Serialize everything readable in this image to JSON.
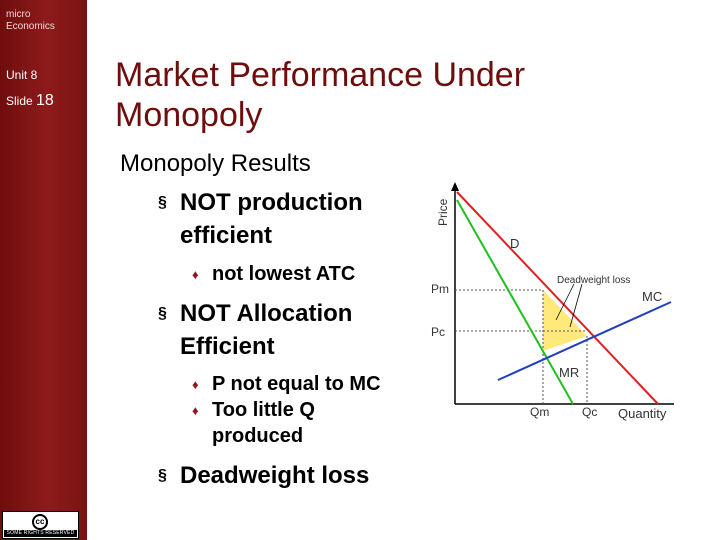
{
  "sidebar": {
    "course_line1": "micro",
    "course_line2": "Economics",
    "unit": "Unit 8",
    "slide_label": "Slide",
    "slide_number": "18"
  },
  "license": {
    "symbol": "cc",
    "text": "SOME RIGHTS RESERVED"
  },
  "title_line1": "Market Performance Under",
  "title_line2": "Monopoly",
  "content": {
    "heading": "Monopoly Results",
    "bullet1": {
      "line1": "NOT production",
      "line2": "efficient"
    },
    "sub1": "not lowest ATC",
    "bullet2": {
      "line1": "NOT  Allocation",
      "line2": "Efficient"
    },
    "sub2": "P not equal to MC",
    "sub3": {
      "line1": "Too little Q",
      "line2": "produced"
    },
    "bullet3": "Deadweight loss"
  },
  "graph": {
    "y_axis_label": "Price",
    "x_axis_label": "Quantity",
    "demand_label": "D",
    "mc_label": "MC",
    "mr_label": "MR",
    "deadweight_label": "Deadweight loss",
    "pm_label": "Pm",
    "pc_label": "Pc",
    "qm_label": "Qm",
    "qc_label": "Qc",
    "colors": {
      "demand": "#e02020",
      "mr": "#20c020",
      "mc": "#2040c0",
      "deadweight": "#ffe97a"
    }
  }
}
